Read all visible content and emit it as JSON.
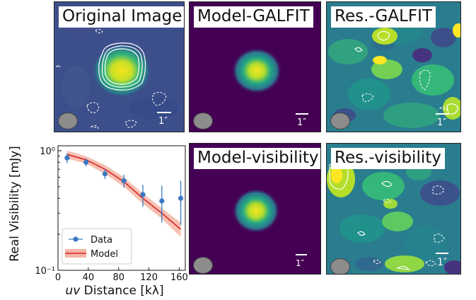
{
  "panels": {
    "original": {
      "label": "Original Image",
      "scale": "1″"
    },
    "model_galfit": {
      "label": "Model-GALFIT",
      "scale": "1″"
    },
    "res_galfit": {
      "label": "Res.-GALFIT",
      "scale": "1″"
    },
    "model_vis": {
      "label": "Model-visibility",
      "scale": "1″"
    },
    "res_vis": {
      "label": "Res.-visibility",
      "scale": "1″"
    }
  },
  "colors": {
    "viridis_bg": "#3b4f8a",
    "source_core": "#f5e51c",
    "data_marker": "#3b78c2",
    "model_line": "#d62728",
    "model_band": "#f4b5a4"
  },
  "chart_data": {
    "type": "scatter",
    "ylabel": "Real Visibility [mJy]",
    "xlabel_italic": "uv",
    "xlabel_rest": " Distance [kλ]",
    "x_ticks": [
      "0",
      "40",
      "80",
      "120",
      "160"
    ],
    "y_ticks": [
      "10⁻¹",
      "10⁰"
    ],
    "xlim": [
      0,
      168
    ],
    "ylim": [
      0.1,
      1.1
    ],
    "yscale": "log",
    "legend_placement": "lower-left",
    "series": [
      {
        "name": "Data",
        "x": [
          12,
          37,
          62,
          87,
          112,
          137,
          162
        ],
        "y": [
          0.87,
          0.8,
          0.64,
          0.56,
          0.43,
          0.38,
          0.4
        ],
        "yerr_low": [
          0.08,
          0.06,
          0.06,
          0.07,
          0.09,
          0.13,
          0.16
        ],
        "yerr_high": [
          0.08,
          0.06,
          0.06,
          0.07,
          0.09,
          0.13,
          0.16
        ]
      },
      {
        "name": "Model",
        "x": [
          12,
          37,
          62,
          87,
          112,
          137,
          162
        ],
        "y": [
          0.93,
          0.84,
          0.7,
          0.55,
          0.4,
          0.3,
          0.22
        ],
        "band_low": [
          0.86,
          0.78,
          0.64,
          0.5,
          0.36,
          0.27,
          0.19
        ],
        "band_high": [
          1.0,
          0.9,
          0.76,
          0.6,
          0.44,
          0.33,
          0.25
        ]
      }
    ]
  }
}
